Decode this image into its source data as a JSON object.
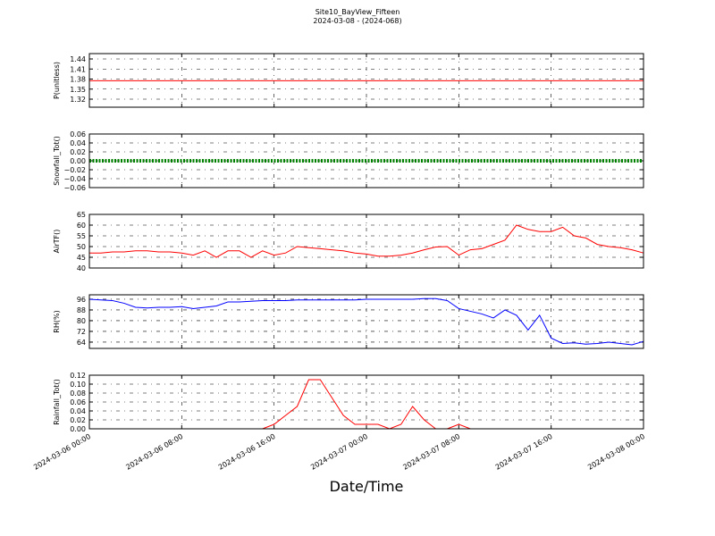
{
  "title": "Site10_BayView_Fifteen",
  "subtitle": "2024-03-08 - (2024-068)",
  "xlabel": "Date/Time",
  "chart_data": [
    {
      "type": "line",
      "ylabel": "P(unitless)",
      "color": "#ff0000",
      "grid": true,
      "xlim": [
        "2024-03-06 00:00",
        "2024-03-08 00:00"
      ],
      "ylim": [
        1.296,
        1.456
      ],
      "yticks": [
        1.32,
        1.35,
        1.38,
        1.41,
        1.44
      ],
      "x": [
        "2024-03-06 00:00",
        "2024-03-06 01:00",
        "2024-03-06 02:00",
        "2024-03-06 03:00",
        "2024-03-06 04:00",
        "2024-03-06 05:00",
        "2024-03-06 06:00",
        "2024-03-06 07:00",
        "2024-03-06 08:00",
        "2024-03-06 09:00",
        "2024-03-06 10:00",
        "2024-03-06 11:00",
        "2024-03-06 12:00",
        "2024-03-06 13:00",
        "2024-03-06 14:00",
        "2024-03-06 15:00",
        "2024-03-06 16:00",
        "2024-03-06 17:00",
        "2024-03-06 18:00",
        "2024-03-06 19:00",
        "2024-03-06 20:00",
        "2024-03-06 21:00",
        "2024-03-06 22:00",
        "2024-03-06 23:00",
        "2024-03-07 00:00",
        "2024-03-07 01:00",
        "2024-03-07 02:00",
        "2024-03-07 03:00",
        "2024-03-07 04:00",
        "2024-03-07 05:00",
        "2024-03-07 06:00",
        "2024-03-07 07:00",
        "2024-03-07 08:00",
        "2024-03-07 09:00",
        "2024-03-07 10:00",
        "2024-03-07 11:00",
        "2024-03-07 12:00",
        "2024-03-07 13:00",
        "2024-03-07 14:00",
        "2024-03-07 15:00",
        "2024-03-07 16:00",
        "2024-03-07 17:00",
        "2024-03-07 18:00",
        "2024-03-07 19:00",
        "2024-03-07 20:00",
        "2024-03-07 21:00",
        "2024-03-07 22:00",
        "2024-03-07 23:00",
        "2024-03-08 00:00"
      ],
      "values": [
        1.375,
        1.375,
        1.375,
        1.375,
        1.375,
        1.375,
        1.375,
        1.375,
        1.375,
        1.375,
        1.375,
        1.375,
        1.375,
        1.375,
        1.375,
        1.375,
        1.375,
        1.375,
        1.375,
        1.375,
        1.375,
        1.375,
        1.375,
        1.375,
        1.375,
        1.375,
        1.375,
        1.375,
        1.375,
        1.375,
        1.375,
        1.375,
        1.375,
        1.375,
        1.375,
        1.375,
        1.375,
        1.375,
        1.375,
        1.375,
        1.375,
        1.375,
        1.375,
        1.375,
        1.375,
        1.375,
        1.375,
        1.375,
        1.375
      ]
    },
    {
      "type": "line",
      "ylabel": "Snowfall_Tot()",
      "color": "#008000",
      "markers": true,
      "grid": true,
      "xlim": [
        "2024-03-06 00:00",
        "2024-03-08 00:00"
      ],
      "ylim": [
        -0.06,
        0.06
      ],
      "yticks": [
        {
          "value": -0.06,
          "label": "−0.06"
        },
        {
          "value": -0.04,
          "label": "−0.04"
        },
        {
          "value": -0.02,
          "label": "−0.02"
        },
        {
          "value": 0,
          "label": "0.00"
        },
        0.02,
        0.04,
        0.06
      ],
      "x": [
        "2024-03-06 00:00",
        "2024-03-06 01:00",
        "2024-03-06 02:00",
        "2024-03-06 03:00",
        "2024-03-06 04:00",
        "2024-03-06 05:00",
        "2024-03-06 06:00",
        "2024-03-06 07:00",
        "2024-03-06 08:00",
        "2024-03-06 09:00",
        "2024-03-06 10:00",
        "2024-03-06 11:00",
        "2024-03-06 12:00",
        "2024-03-06 13:00",
        "2024-03-06 14:00",
        "2024-03-06 15:00",
        "2024-03-06 16:00",
        "2024-03-06 17:00",
        "2024-03-06 18:00",
        "2024-03-06 19:00",
        "2024-03-06 20:00",
        "2024-03-06 21:00",
        "2024-03-06 22:00",
        "2024-03-06 23:00",
        "2024-03-07 00:00",
        "2024-03-07 01:00",
        "2024-03-07 02:00",
        "2024-03-07 03:00",
        "2024-03-07 04:00",
        "2024-03-07 05:00",
        "2024-03-07 06:00",
        "2024-03-07 07:00",
        "2024-03-07 08:00",
        "2024-03-07 09:00",
        "2024-03-07 10:00",
        "2024-03-07 11:00",
        "2024-03-07 12:00",
        "2024-03-07 13:00",
        "2024-03-07 14:00",
        "2024-03-07 15:00",
        "2024-03-07 16:00",
        "2024-03-07 17:00",
        "2024-03-07 18:00",
        "2024-03-07 19:00",
        "2024-03-07 20:00",
        "2024-03-07 21:00",
        "2024-03-07 22:00",
        "2024-03-07 23:00",
        "2024-03-08 00:00"
      ],
      "values": [
        0,
        0,
        0,
        0,
        0,
        0,
        0,
        0,
        0,
        0,
        0,
        0,
        0,
        0,
        0,
        0,
        0,
        0,
        0,
        0,
        0,
        0,
        0,
        0,
        0,
        0,
        0,
        0,
        0,
        0,
        0,
        0,
        0,
        0,
        0,
        0,
        0,
        0,
        0,
        0,
        0,
        0,
        0,
        0,
        0,
        0,
        0,
        0,
        0
      ]
    },
    {
      "type": "line",
      "ylabel": "AirTF()",
      "color": "#ff0000",
      "grid": true,
      "xlim": [
        "2024-03-06 00:00",
        "2024-03-08 00:00"
      ],
      "ylim": [
        40,
        65
      ],
      "yticks": [
        40,
        45,
        50,
        55,
        60,
        65
      ],
      "x": [
        "2024-03-06 00:00",
        "2024-03-06 01:00",
        "2024-03-06 02:00",
        "2024-03-06 03:00",
        "2024-03-06 04:00",
        "2024-03-06 05:00",
        "2024-03-06 06:00",
        "2024-03-06 07:00",
        "2024-03-06 08:00",
        "2024-03-06 09:00",
        "2024-03-06 10:00",
        "2024-03-06 11:00",
        "2024-03-06 12:00",
        "2024-03-06 13:00",
        "2024-03-06 14:00",
        "2024-03-06 15:00",
        "2024-03-06 16:00",
        "2024-03-06 17:00",
        "2024-03-06 18:00",
        "2024-03-06 19:00",
        "2024-03-06 20:00",
        "2024-03-06 21:00",
        "2024-03-06 22:00",
        "2024-03-06 23:00",
        "2024-03-07 00:00",
        "2024-03-07 01:00",
        "2024-03-07 02:00",
        "2024-03-07 03:00",
        "2024-03-07 04:00",
        "2024-03-07 05:00",
        "2024-03-07 06:00",
        "2024-03-07 07:00",
        "2024-03-07 08:00",
        "2024-03-07 09:00",
        "2024-03-07 10:00",
        "2024-03-07 11:00",
        "2024-03-07 12:00",
        "2024-03-07 13:00",
        "2024-03-07 14:00",
        "2024-03-07 15:00",
        "2024-03-07 16:00",
        "2024-03-07 17:00",
        "2024-03-07 18:00",
        "2024-03-07 19:00",
        "2024-03-07 20:00",
        "2024-03-07 21:00",
        "2024-03-07 22:00",
        "2024-03-07 23:00",
        "2024-03-08 00:00"
      ],
      "values": [
        47,
        47,
        47.5,
        47.5,
        48,
        48,
        47.5,
        47.5,
        47,
        46,
        48,
        45,
        48,
        48,
        45,
        48,
        46,
        47,
        50,
        49.5,
        49,
        48.5,
        48,
        47,
        46.5,
        45.5,
        45.5,
        46,
        47,
        48.5,
        49.8,
        50,
        46,
        48.5,
        49,
        51,
        53,
        60,
        58,
        57,
        57,
        59,
        55,
        54,
        51,
        50,
        49.5,
        48.5,
        47
      ]
    },
    {
      "type": "line",
      "ylabel": "RH(%)",
      "color": "#0000ff",
      "grid": true,
      "xlim": [
        "2024-03-06 00:00",
        "2024-03-08 00:00"
      ],
      "ylim": [
        59.3,
        99.3
      ],
      "yticks": [
        64,
        72,
        80,
        88,
        96
      ],
      "x": [
        "2024-03-06 00:00",
        "2024-03-06 01:00",
        "2024-03-06 02:00",
        "2024-03-06 03:00",
        "2024-03-06 04:00",
        "2024-03-06 05:00",
        "2024-03-06 06:00",
        "2024-03-06 07:00",
        "2024-03-06 08:00",
        "2024-03-06 09:00",
        "2024-03-06 10:00",
        "2024-03-06 11:00",
        "2024-03-06 12:00",
        "2024-03-06 13:00",
        "2024-03-06 14:00",
        "2024-03-06 15:00",
        "2024-03-06 16:00",
        "2024-03-06 17:00",
        "2024-03-06 18:00",
        "2024-03-06 19:00",
        "2024-03-06 20:00",
        "2024-03-06 21:00",
        "2024-03-06 22:00",
        "2024-03-06 23:00",
        "2024-03-07 00:00",
        "2024-03-07 01:00",
        "2024-03-07 02:00",
        "2024-03-07 03:00",
        "2024-03-07 04:00",
        "2024-03-07 05:00",
        "2024-03-07 06:00",
        "2024-03-07 07:00",
        "2024-03-07 08:00",
        "2024-03-07 09:00",
        "2024-03-07 10:00",
        "2024-03-07 11:00",
        "2024-03-07 12:00",
        "2024-03-07 13:00",
        "2024-03-07 14:00",
        "2024-03-07 15:00",
        "2024-03-07 16:00",
        "2024-03-07 17:00",
        "2024-03-07 18:00",
        "2024-03-07 19:00",
        "2024-03-07 20:00",
        "2024-03-07 21:00",
        "2024-03-07 22:00",
        "2024-03-07 23:00",
        "2024-03-08 00:00"
      ],
      "values": [
        96,
        95.5,
        95,
        93,
        90,
        89.5,
        90,
        90,
        90.5,
        89,
        90,
        91,
        94,
        94,
        94.5,
        95,
        95,
        95,
        95.5,
        95.5,
        95.5,
        95.5,
        95.5,
        95.5,
        96,
        96,
        96,
        96,
        96,
        96.5,
        96.5,
        95,
        89,
        87,
        85,
        82,
        88,
        84,
        73,
        84,
        67,
        63,
        63.5,
        62.5,
        63,
        64,
        63,
        62,
        64.5
      ]
    },
    {
      "type": "line",
      "ylabel": "Rainfall_Tot()",
      "color": "#ff0000",
      "grid": true,
      "xlim": [
        "2024-03-06 00:00",
        "2024-03-08 00:00"
      ],
      "ylim": [
        0,
        0.12
      ],
      "yticks": [
        {
          "value": 0,
          "label": "0.00"
        },
        0.02,
        0.04,
        0.06,
        0.08,
        {
          "value": 0.1,
          "label": "0.10"
        },
        0.12
      ],
      "xticks": [
        "2024-03-06 00:00",
        "2024-03-06 08:00",
        "2024-03-06 16:00",
        "2024-03-07 00:00",
        "2024-03-07 08:00",
        "2024-03-07 16:00",
        "2024-03-08 00:00"
      ],
      "x": [
        "2024-03-06 00:00",
        "2024-03-06 01:00",
        "2024-03-06 02:00",
        "2024-03-06 03:00",
        "2024-03-06 04:00",
        "2024-03-06 05:00",
        "2024-03-06 06:00",
        "2024-03-06 07:00",
        "2024-03-06 08:00",
        "2024-03-06 09:00",
        "2024-03-06 10:00",
        "2024-03-06 11:00",
        "2024-03-06 12:00",
        "2024-03-06 13:00",
        "2024-03-06 14:00",
        "2024-03-06 15:00",
        "2024-03-06 16:00",
        "2024-03-06 17:00",
        "2024-03-06 18:00",
        "2024-03-06 19:00",
        "2024-03-06 20:00",
        "2024-03-06 21:00",
        "2024-03-06 22:00",
        "2024-03-06 23:00",
        "2024-03-07 00:00",
        "2024-03-07 01:00",
        "2024-03-07 02:00",
        "2024-03-07 03:00",
        "2024-03-07 04:00",
        "2024-03-07 05:00",
        "2024-03-07 06:00",
        "2024-03-07 07:00",
        "2024-03-07 08:00",
        "2024-03-07 09:00",
        "2024-03-07 10:00",
        "2024-03-07 11:00",
        "2024-03-07 12:00",
        "2024-03-07 13:00",
        "2024-03-07 14:00",
        "2024-03-07 15:00",
        "2024-03-07 16:00",
        "2024-03-07 17:00",
        "2024-03-07 18:00",
        "2024-03-07 19:00",
        "2024-03-07 20:00",
        "2024-03-07 21:00",
        "2024-03-07 22:00",
        "2024-03-07 23:00",
        "2024-03-08 00:00"
      ],
      "values": [
        0,
        0,
        0,
        0,
        0,
        0,
        0,
        0,
        0,
        0,
        0,
        0,
        0,
        0,
        0,
        0,
        0.01,
        0.03,
        0.05,
        0.11,
        0.11,
        0.07,
        0.03,
        0.01,
        0.01,
        0.01,
        0,
        0.01,
        0.05,
        0.02,
        0,
        0,
        0.01,
        0,
        0,
        0,
        0,
        0,
        0,
        0,
        0,
        0,
        0,
        0,
        0,
        0,
        0,
        0,
        0
      ]
    }
  ]
}
